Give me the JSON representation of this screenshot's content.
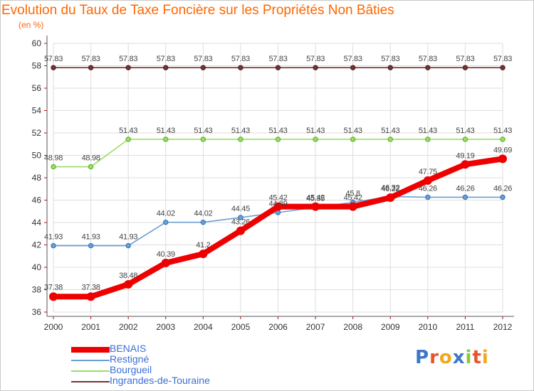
{
  "title": "Evolution du Taux de Taxe Foncière sur les Propriétés Non Bâties",
  "unit_label": "(en %)",
  "logo": {
    "letters": [
      "P",
      "r",
      "o",
      "x",
      "i",
      "t",
      "i"
    ],
    "colors": [
      "#3c78c8",
      "#e8542a",
      "#f2a71b",
      "#3c78c8",
      "#8cc63f",
      "#e8542a",
      "#f2a71b"
    ]
  },
  "chart_data": {
    "type": "line",
    "title": "Evolution du Taux de Taxe Foncière sur les Propriétés Non Bâties",
    "ylabel": "(en %)",
    "xlabel": "",
    "x": [
      "2000",
      "2001",
      "2002",
      "2003",
      "2004",
      "2005",
      "2006",
      "2007",
      "2008",
      "2009",
      "2010",
      "2011",
      "2012"
    ],
    "ylim": [
      36,
      60
    ],
    "yticks": [
      "36",
      "38",
      "40",
      "42",
      "44",
      "46",
      "48",
      "50",
      "52",
      "54",
      "56",
      "58",
      "60"
    ],
    "grid": true,
    "legend_position": "bottom-left",
    "series": [
      {
        "name": "BENAIS",
        "color": "#ee0000",
        "values": [
          37.38,
          37.38,
          38.48,
          40.39,
          41.2,
          43.26,
          45.42,
          45.42,
          45.42,
          46.22,
          47.75,
          49.19,
          49.69
        ],
        "labels": [
          "37.38",
          "37.38",
          "38.48",
          "40.39",
          "41.2",
          "43.26",
          "45.42",
          "45.42",
          "45.42",
          "46.22",
          "47.75",
          "49.19",
          "49.69"
        ]
      },
      {
        "name": "Restigné",
        "color": "#6a9fd4",
        "values": [
          41.93,
          41.93,
          41.93,
          44.02,
          44.02,
          44.45,
          44.89,
          45.35,
          45.8,
          46.32,
          46.26,
          46.26,
          46.26
        ],
        "labels": [
          "41.93",
          "41.93",
          "41.93",
          "44.02",
          "44.02",
          "44.45",
          "44.89",
          "45.35",
          "45.8",
          "46.32",
          "46.26",
          "46.26",
          "46.26"
        ]
      },
      {
        "name": "Bourgueil",
        "color": "#99dd66",
        "values": [
          48.98,
          48.98,
          51.43,
          51.43,
          51.43,
          51.43,
          51.43,
          51.43,
          51.43,
          51.43,
          51.43,
          51.43,
          51.43
        ],
        "labels": [
          "48.98",
          "48.98",
          "51.43",
          "51.43",
          "51.43",
          "51.43",
          "51.43",
          "51.43",
          "51.43",
          "51.43",
          "51.43",
          "51.43",
          "51.43"
        ]
      },
      {
        "name": "Ingrandes-de-Touraine",
        "color": "#773333",
        "values": [
          57.83,
          57.83,
          57.83,
          57.83,
          57.83,
          57.83,
          57.83,
          57.83,
          57.83,
          57.83,
          57.83,
          57.83,
          57.83
        ],
        "labels": [
          "57.83",
          "57.83",
          "57.83",
          "57.83",
          "57.83",
          "57.83",
          "57.83",
          "57.83",
          "57.83",
          "57.83",
          "57.83",
          "57.83",
          "57.83"
        ]
      }
    ]
  }
}
